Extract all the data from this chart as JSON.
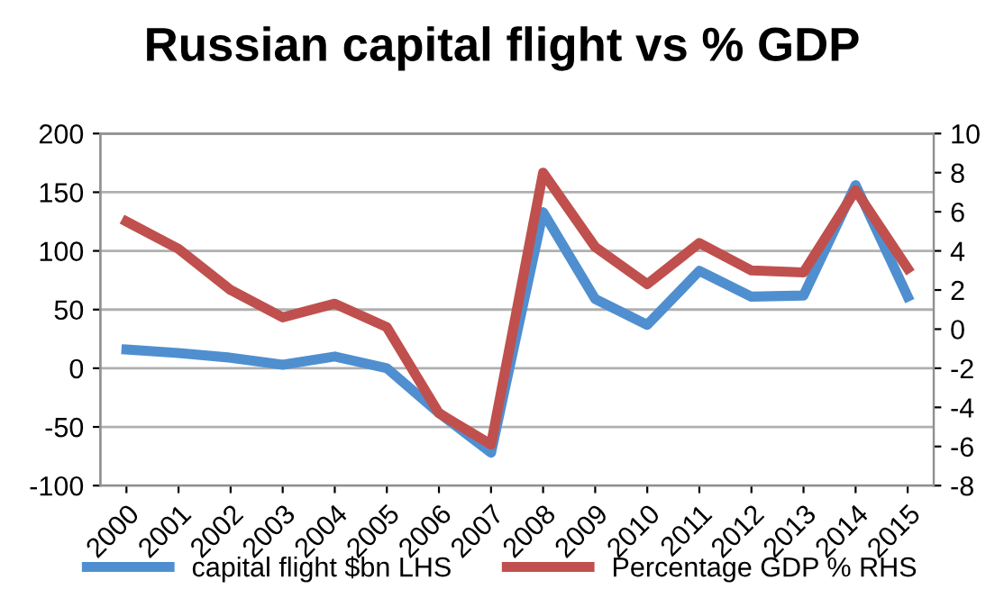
{
  "chart_data": {
    "type": "line",
    "title": "Russian capital flight vs % GDP",
    "categories": [
      "2000",
      "2001",
      "2002",
      "2003",
      "2004",
      "2005",
      "2006",
      "2007",
      "2008",
      "2009",
      "2010",
      "2011",
      "2012",
      "2013",
      "2014",
      "2015"
    ],
    "series": [
      {
        "name": "capital flight $bn LHS",
        "color": "#4f8fd0",
        "values": [
          16,
          13,
          9,
          3,
          10,
          0,
          -38,
          -72,
          133,
          59,
          37,
          83,
          61,
          62,
          156,
          61
        ]
      },
      {
        "name": "Percentage GDP % RHS",
        "color": "#c0504d",
        "axis": "y2",
        "values": [
          5.5,
          4.1,
          2.0,
          0.6,
          1.3,
          0.1,
          -4.3,
          -5.9,
          8.0,
          4.2,
          2.3,
          4.4,
          3.0,
          2.9,
          7.1,
          3.1
        ]
      }
    ],
    "ylim": [
      -100,
      200
    ],
    "yticks": [
      -100,
      -50,
      0,
      50,
      100,
      150,
      200
    ],
    "y2lim": [
      -8,
      10
    ],
    "y2ticks": [
      -8,
      -6,
      -4,
      -2,
      0,
      2,
      4,
      6,
      8,
      10
    ],
    "grid": "y",
    "legend": "bottom"
  }
}
